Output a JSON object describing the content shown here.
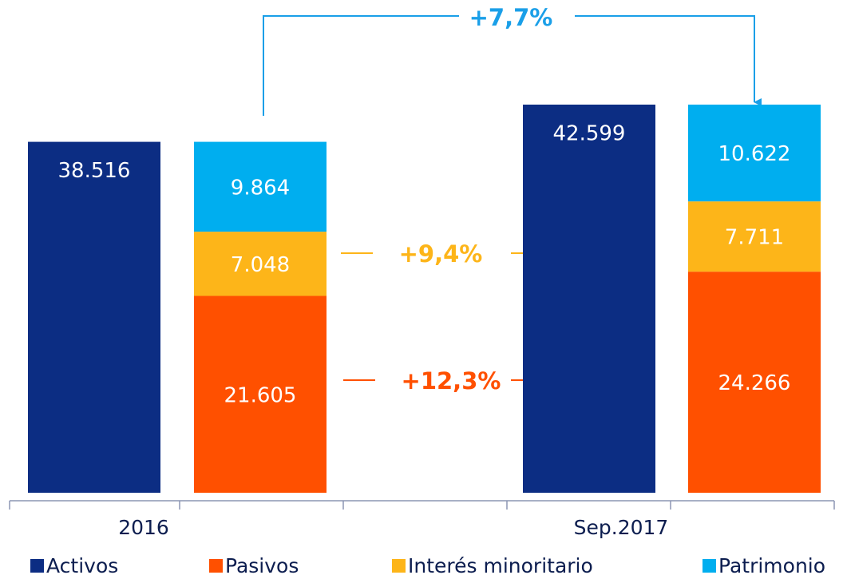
{
  "chart_data": {
    "type": "bar",
    "categories": [
      "2016",
      "Sep.2017"
    ],
    "series": [
      {
        "name": "Activos",
        "color": "#0c2d83",
        "values": [
          38516,
          42599
        ],
        "value_labels": [
          "38.516",
          "42.599"
        ]
      },
      {
        "name": "Pasivos",
        "color": "#ff5000",
        "values": [
          21605,
          24266
        ],
        "value_labels": [
          "21.605",
          "24.266"
        ]
      },
      {
        "name": "Interés minoritario",
        "color": "#fdb519",
        "values": [
          7048,
          7711
        ],
        "value_labels": [
          "7.048",
          "7.711"
        ]
      },
      {
        "name": "Patrimonio",
        "color": "#00aeef",
        "values": [
          9864,
          10622
        ],
        "value_labels": [
          "9.864",
          "10.622"
        ]
      }
    ],
    "annotations": [
      {
        "text": "+7,7%",
        "color": "#1a9fe8"
      },
      {
        "text": "+9,4%",
        "color": "#fdb519"
      },
      {
        "text": "+12,3%",
        "color": "#ff5000"
      }
    ]
  }
}
